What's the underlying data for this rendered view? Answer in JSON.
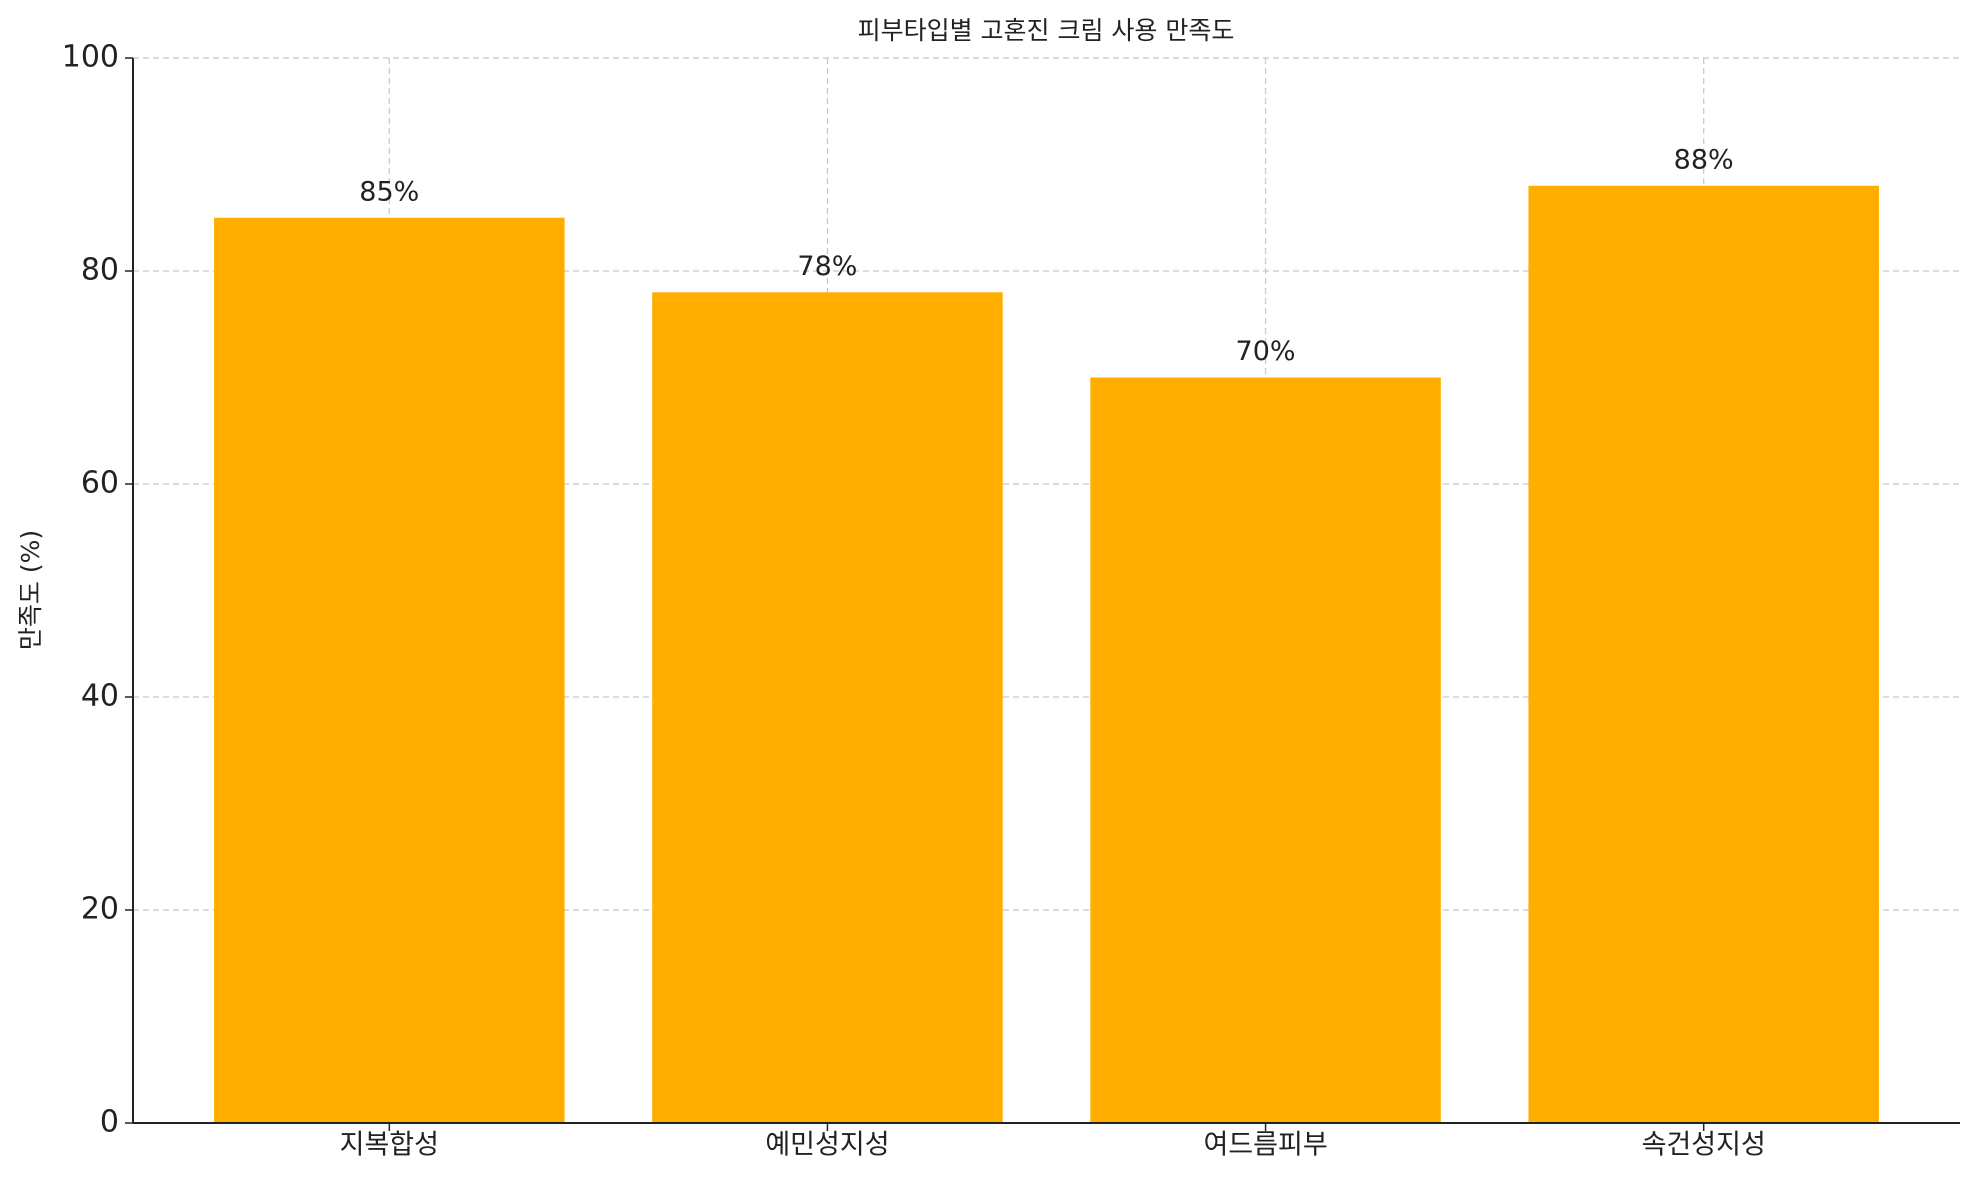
{
  "chart_data": {
    "type": "bar",
    "title": "피부타입별 고혼진 크림 사용 만족도",
    "y_label": "만족도 (%)",
    "categories": [
      "지복합성",
      "예민성지성",
      "여드름피부",
      "속건성지성"
    ],
    "values": [
      85,
      78,
      70,
      88
    ],
    "value_labels": [
      "85%",
      "78%",
      "70%",
      "88%"
    ],
    "color": "#ffae00",
    "ylim": [
      0,
      100
    ],
    "yticks": [
      0,
      20,
      40,
      60,
      80,
      100
    ],
    "grid": true
  }
}
